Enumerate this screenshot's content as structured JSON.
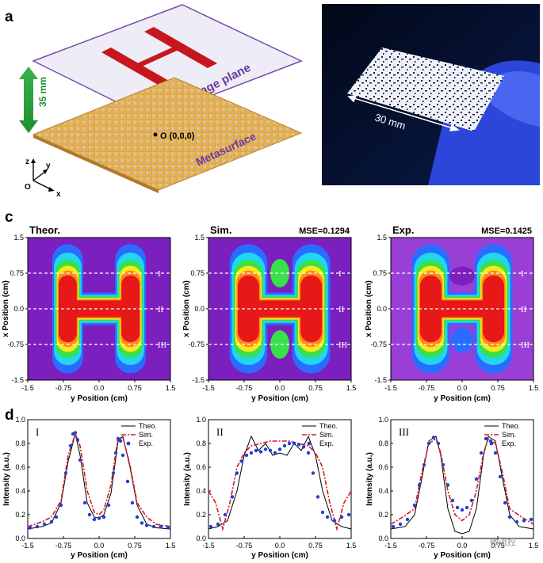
{
  "panel_a": {
    "letter": "a",
    "dimension_label": "35 mm",
    "image_plane_label": "Image plane",
    "metasurface_label": "Metasurface",
    "origin_label": "O (0,0,0)",
    "axis_z": "z",
    "axis_y": "y",
    "axis_x": "x",
    "axis_origin": "O"
  },
  "panel_b": {
    "letter": "b",
    "scale_label": "30 mm"
  },
  "panel_c": {
    "letter": "c",
    "maps": [
      {
        "title": "Theor.",
        "mse": ""
      },
      {
        "title": "Sim.",
        "mse": "MSE=0.1294"
      },
      {
        "title": "Exp.",
        "mse": "MSE=0.1425"
      }
    ],
    "xlabel": "y Position (cm)",
    "ylabel": "x Position (cm)",
    "xticks": [
      "-1.5",
      "-0.75",
      "0.0",
      "0.75",
      "1.5"
    ],
    "yticks": [
      "1.5",
      "0.75",
      "0.0",
      "-0.75",
      "-1.5"
    ],
    "line_markers": [
      "I",
      "II",
      "III"
    ],
    "line_positions_cm": [
      0.75,
      0.0,
      -0.75
    ]
  },
  "panel_d": {
    "letter": "d",
    "colors": {
      "theo": "#000000",
      "sim": "#d7191c",
      "exp": "#1f3fd8"
    },
    "chart_data": [
      {
        "type": "line",
        "panel_label": "I",
        "xlabel": "y Position (cm)",
        "ylabel": "Intensity (a.u.)",
        "xlim": [
          -1.5,
          1.5
        ],
        "ylim": [
          0.0,
          1.0
        ],
        "xticks": [
          "-1.5",
          "-0.75",
          "0.0",
          "0.75",
          "1.5"
        ],
        "yticks": [
          "0.0",
          "0.2",
          "0.4",
          "0.6",
          "0.8",
          "1.0"
        ],
        "legend": [
          "Theo.",
          "Sim.",
          "Exp."
        ],
        "series": [
          {
            "name": "Theo.",
            "x": [
              -1.5,
              -1.2,
              -1.0,
              -0.8,
              -0.65,
              -0.5,
              -0.4,
              -0.25,
              -0.1,
              0.0,
              0.1,
              0.25,
              0.4,
              0.5,
              0.65,
              0.8,
              1.0,
              1.2,
              1.5
            ],
            "y": [
              0.08,
              0.1,
              0.13,
              0.3,
              0.65,
              0.88,
              0.7,
              0.3,
              0.18,
              0.17,
              0.2,
              0.38,
              0.82,
              0.86,
              0.6,
              0.28,
              0.12,
              0.09,
              0.08
            ]
          },
          {
            "name": "Sim.",
            "x": [
              -1.5,
              -1.2,
              -1.0,
              -0.8,
              -0.65,
              -0.5,
              -0.4,
              -0.25,
              -0.1,
              0.0,
              0.1,
              0.25,
              0.4,
              0.5,
              0.65,
              0.8,
              1.0,
              1.2,
              1.5
            ],
            "y": [
              0.1,
              0.14,
              0.18,
              0.32,
              0.7,
              0.88,
              0.78,
              0.4,
              0.22,
              0.2,
              0.24,
              0.45,
              0.85,
              0.85,
              0.62,
              0.3,
              0.18,
              0.12,
              0.1
            ]
          },
          {
            "name": "Exp.",
            "x": [
              -1.45,
              -1.3,
              -1.15,
              -1.0,
              -0.9,
              -0.8,
              -0.7,
              -0.6,
              -0.55,
              -0.5,
              -0.45,
              -0.4,
              -0.3,
              -0.2,
              -0.1,
              0.0,
              0.1,
              0.2,
              0.3,
              0.35,
              0.4,
              0.45,
              0.5,
              0.6,
              0.7,
              0.8,
              0.9,
              1.0,
              1.15,
              1.3,
              1.45
            ],
            "y": [
              0.09,
              0.1,
              0.12,
              0.14,
              0.18,
              0.28,
              0.55,
              0.78,
              0.88,
              0.89,
              0.83,
              0.66,
              0.3,
              0.2,
              0.16,
              0.17,
              0.18,
              0.28,
              0.55,
              0.72,
              0.84,
              0.82,
              0.7,
              0.48,
              0.3,
              0.18,
              0.13,
              0.11,
              0.1,
              0.1,
              0.09
            ]
          }
        ]
      },
      {
        "type": "line",
        "panel_label": "II",
        "xlabel": "y Position (cm)",
        "ylabel": "Intensity (a.u.)",
        "xlim": [
          -1.5,
          1.5
        ],
        "ylim": [
          0.0,
          1.0
        ],
        "xticks": [
          "-1.5",
          "-0.75",
          "0.0",
          "0.75",
          "1.5"
        ],
        "yticks": [
          "0.0",
          "0.2",
          "0.4",
          "0.6",
          "0.8",
          "1.0"
        ],
        "legend": [
          "Theo.",
          "Sim.",
          "Exp."
        ],
        "series": [
          {
            "name": "Theo.",
            "x": [
              -1.5,
              -1.3,
              -1.1,
              -0.9,
              -0.75,
              -0.6,
              -0.45,
              -0.3,
              -0.15,
              0.0,
              0.15,
              0.3,
              0.45,
              0.6,
              0.75,
              0.9,
              1.1,
              1.3,
              1.5
            ],
            "y": [
              0.08,
              0.1,
              0.15,
              0.4,
              0.7,
              0.86,
              0.74,
              0.8,
              0.7,
              0.72,
              0.7,
              0.8,
              0.74,
              0.86,
              0.7,
              0.4,
              0.15,
              0.1,
              0.08
            ]
          },
          {
            "name": "Sim.",
            "x": [
              -1.5,
              -1.35,
              -1.2,
              -1.05,
              -0.9,
              -0.75,
              -0.6,
              -0.4,
              -0.2,
              0.0,
              0.2,
              0.4,
              0.6,
              0.75,
              0.9,
              1.05,
              1.2,
              1.35,
              1.5
            ],
            "y": [
              0.4,
              0.3,
              0.08,
              0.3,
              0.6,
              0.72,
              0.78,
              0.8,
              0.82,
              0.82,
              0.82,
              0.8,
              0.78,
              0.72,
              0.6,
              0.3,
              0.08,
              0.3,
              0.4
            ]
          },
          {
            "name": "Exp.",
            "x": [
              -1.45,
              -1.3,
              -1.15,
              -1.0,
              -0.9,
              -0.8,
              -0.7,
              -0.6,
              -0.5,
              -0.4,
              -0.3,
              -0.2,
              -0.1,
              0.0,
              0.1,
              0.2,
              0.3,
              0.4,
              0.5,
              0.6,
              0.7,
              0.8,
              0.9,
              1.0,
              1.15,
              1.3,
              1.45
            ],
            "y": [
              0.1,
              0.12,
              0.2,
              0.35,
              0.55,
              0.65,
              0.7,
              0.72,
              0.74,
              0.73,
              0.75,
              0.74,
              0.72,
              0.75,
              0.78,
              0.8,
              0.8,
              0.79,
              0.77,
              0.72,
              0.55,
              0.35,
              0.22,
              0.18,
              0.15,
              0.18,
              0.2
            ]
          }
        ]
      },
      {
        "type": "line",
        "panel_label": "III",
        "xlabel": "y Position (cm)",
        "ylabel": "Intensity (a.u.)",
        "xlim": [
          -1.5,
          1.5
        ],
        "ylim": [
          0.0,
          1.0
        ],
        "xticks": [
          "-1.5",
          "-0.75",
          "0.0",
          "0.75",
          "1.5"
        ],
        "yticks": [
          "0.0",
          "0.2",
          "0.4",
          "0.6",
          "0.8",
          "1.0"
        ],
        "legend": [
          "Theo.",
          "Sim.",
          "Exp."
        ],
        "series": [
          {
            "name": "Theo.",
            "x": [
              -1.5,
              -1.2,
              -1.0,
              -0.85,
              -0.7,
              -0.55,
              -0.45,
              -0.3,
              -0.15,
              0.0,
              0.15,
              0.3,
              0.45,
              0.55,
              0.7,
              0.85,
              1.0,
              1.2,
              1.5
            ],
            "y": [
              0.08,
              0.1,
              0.2,
              0.5,
              0.82,
              0.86,
              0.7,
              0.25,
              0.06,
              0.04,
              0.06,
              0.25,
              0.7,
              0.86,
              0.82,
              0.5,
              0.2,
              0.1,
              0.08
            ]
          },
          {
            "name": "Sim.",
            "x": [
              -1.5,
              -1.25,
              -1.0,
              -0.85,
              -0.7,
              -0.55,
              -0.45,
              -0.3,
              -0.15,
              0.0,
              0.15,
              0.3,
              0.45,
              0.55,
              0.7,
              0.85,
              1.0,
              1.25,
              1.5
            ],
            "y": [
              0.12,
              0.18,
              0.25,
              0.55,
              0.8,
              0.84,
              0.72,
              0.4,
              0.2,
              0.15,
              0.2,
              0.4,
              0.72,
              0.84,
              0.8,
              0.55,
              0.25,
              0.18,
              0.12
            ]
          },
          {
            "name": "Exp.",
            "x": [
              -1.45,
              -1.3,
              -1.15,
              -1.0,
              -0.9,
              -0.8,
              -0.7,
              -0.6,
              -0.5,
              -0.4,
              -0.3,
              -0.2,
              -0.1,
              0.0,
              0.1,
              0.2,
              0.3,
              0.4,
              0.5,
              0.6,
              0.7,
              0.8,
              0.9,
              1.0,
              1.15,
              1.3,
              1.45
            ],
            "y": [
              0.1,
              0.12,
              0.16,
              0.28,
              0.45,
              0.62,
              0.8,
              0.85,
              0.8,
              0.62,
              0.45,
              0.32,
              0.26,
              0.24,
              0.26,
              0.32,
              0.5,
              0.72,
              0.84,
              0.82,
              0.72,
              0.52,
              0.3,
              0.18,
              0.14,
              0.15,
              0.16
            ]
          }
        ]
      }
    ]
  },
  "watermark": "微流控"
}
